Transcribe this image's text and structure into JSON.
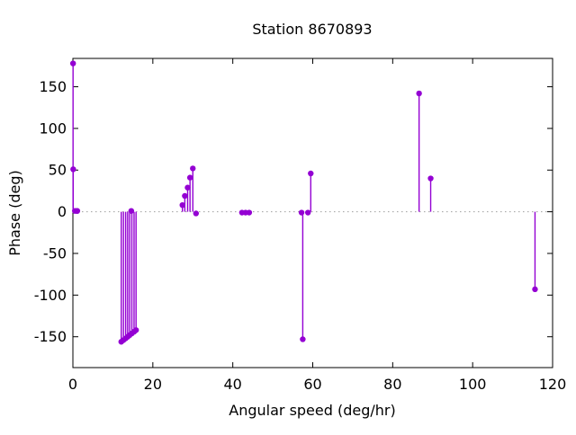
{
  "figure": {
    "background": "#ffffff"
  },
  "chart_data": {
    "type": "scatter",
    "style": "impulses-with-points",
    "title": "Station 8670893",
    "xlabel": "Angular speed (deg/hr)",
    "ylabel": "Phase (deg)",
    "xlim": [
      0,
      120
    ],
    "ylim": [
      -187,
      184
    ],
    "xticks": [
      0,
      20,
      40,
      60,
      80,
      100,
      120
    ],
    "yticks": [
      -150,
      -100,
      -50,
      0,
      50,
      100,
      150
    ],
    "legend": "none",
    "grid": "zero-line-only",
    "zero_line": {
      "y": 0,
      "style": "dotted",
      "color": "#9e9e9e"
    },
    "series_color": "#9400d3",
    "frame_color": "#000000",
    "points": [
      {
        "x": 0.04,
        "y": 178
      },
      {
        "x": 0.08,
        "y": 51
      },
      {
        "x": 0.5,
        "y": 1
      },
      {
        "x": 1.0,
        "y": 1
      },
      {
        "x": 1.1,
        "y": 1
      },
      {
        "x": 12.1,
        "y": -156
      },
      {
        "x": 12.65,
        "y": -154
      },
      {
        "x": 13.2,
        "y": -152
      },
      {
        "x": 13.7,
        "y": -150
      },
      {
        "x": 14.2,
        "y": -148
      },
      {
        "x": 14.75,
        "y": -146
      },
      {
        "x": 15.3,
        "y": -144
      },
      {
        "x": 15.8,
        "y": -142
      },
      {
        "x": 14.6,
        "y": 1
      },
      {
        "x": 27.4,
        "y": 8
      },
      {
        "x": 28.0,
        "y": 19
      },
      {
        "x": 28.7,
        "y": 29
      },
      {
        "x": 29.3,
        "y": 41
      },
      {
        "x": 30.0,
        "y": 52
      },
      {
        "x": 30.8,
        "y": -2
      },
      {
        "x": 42.3,
        "y": -1
      },
      {
        "x": 43.2,
        "y": -1
      },
      {
        "x": 44.1,
        "y": -1
      },
      {
        "x": 57.2,
        "y": -1
      },
      {
        "x": 57.5,
        "y": -153
      },
      {
        "x": 58.8,
        "y": -1
      },
      {
        "x": 59.5,
        "y": 46
      },
      {
        "x": 86.6,
        "y": 142
      },
      {
        "x": 89.5,
        "y": 40
      },
      {
        "x": 115.6,
        "y": -93
      }
    ]
  }
}
